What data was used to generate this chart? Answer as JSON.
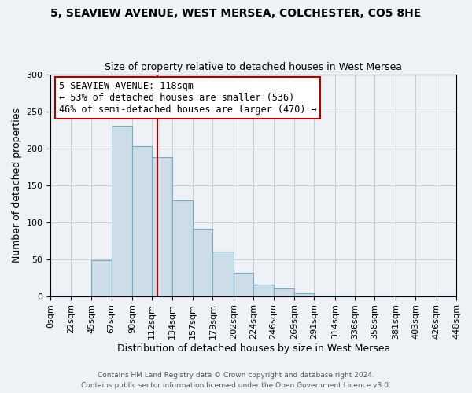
{
  "title": "5, SEAVIEW AVENUE, WEST MERSEA, COLCHESTER, CO5 8HE",
  "subtitle": "Size of property relative to detached houses in West Mersea",
  "xlabel": "Distribution of detached houses by size in West Mersea",
  "ylabel": "Number of detached properties",
  "bar_color": "#ccdde8",
  "bar_edge_color": "#7aaabb",
  "bin_edges": [
    0,
    22,
    45,
    67,
    90,
    112,
    134,
    157,
    179,
    202,
    224,
    246,
    269,
    291,
    314,
    336,
    358,
    381,
    403,
    426,
    448
  ],
  "bin_labels": [
    "0sqm",
    "22sqm",
    "45sqm",
    "67sqm",
    "90sqm",
    "112sqm",
    "134sqm",
    "157sqm",
    "179sqm",
    "202sqm",
    "224sqm",
    "246sqm",
    "269sqm",
    "291sqm",
    "314sqm",
    "336sqm",
    "358sqm",
    "381sqm",
    "403sqm",
    "426sqm",
    "448sqm"
  ],
  "bar_heights": [
    1,
    0,
    48,
    230,
    203,
    188,
    129,
    91,
    60,
    31,
    16,
    10,
    4,
    1,
    1,
    0,
    1,
    0,
    0,
    1
  ],
  "ylim": [
    0,
    300
  ],
  "yticks": [
    0,
    50,
    100,
    150,
    200,
    250,
    300
  ],
  "vline_x": 118,
  "vline_color": "#aa0000",
  "annotation_title": "5 SEAVIEW AVENUE: 118sqm",
  "annotation_line1": "← 53% of detached houses are smaller (536)",
  "annotation_line2": "46% of semi-detached houses are larger (470) →",
  "annotation_box_color": "#ffffff",
  "annotation_box_edge": "#aa0000",
  "footnote1": "Contains HM Land Registry data © Crown copyright and database right 2024.",
  "footnote2": "Contains public sector information licensed under the Open Government Licence v3.0.",
  "background_color": "#eef2f7",
  "grid_color": "#cccccc",
  "title_fontsize": 10,
  "subtitle_fontsize": 9,
  "annotation_fontsize": 8.5,
  "tick_fontsize": 8,
  "ylabel_fontsize": 9,
  "xlabel_fontsize": 9
}
